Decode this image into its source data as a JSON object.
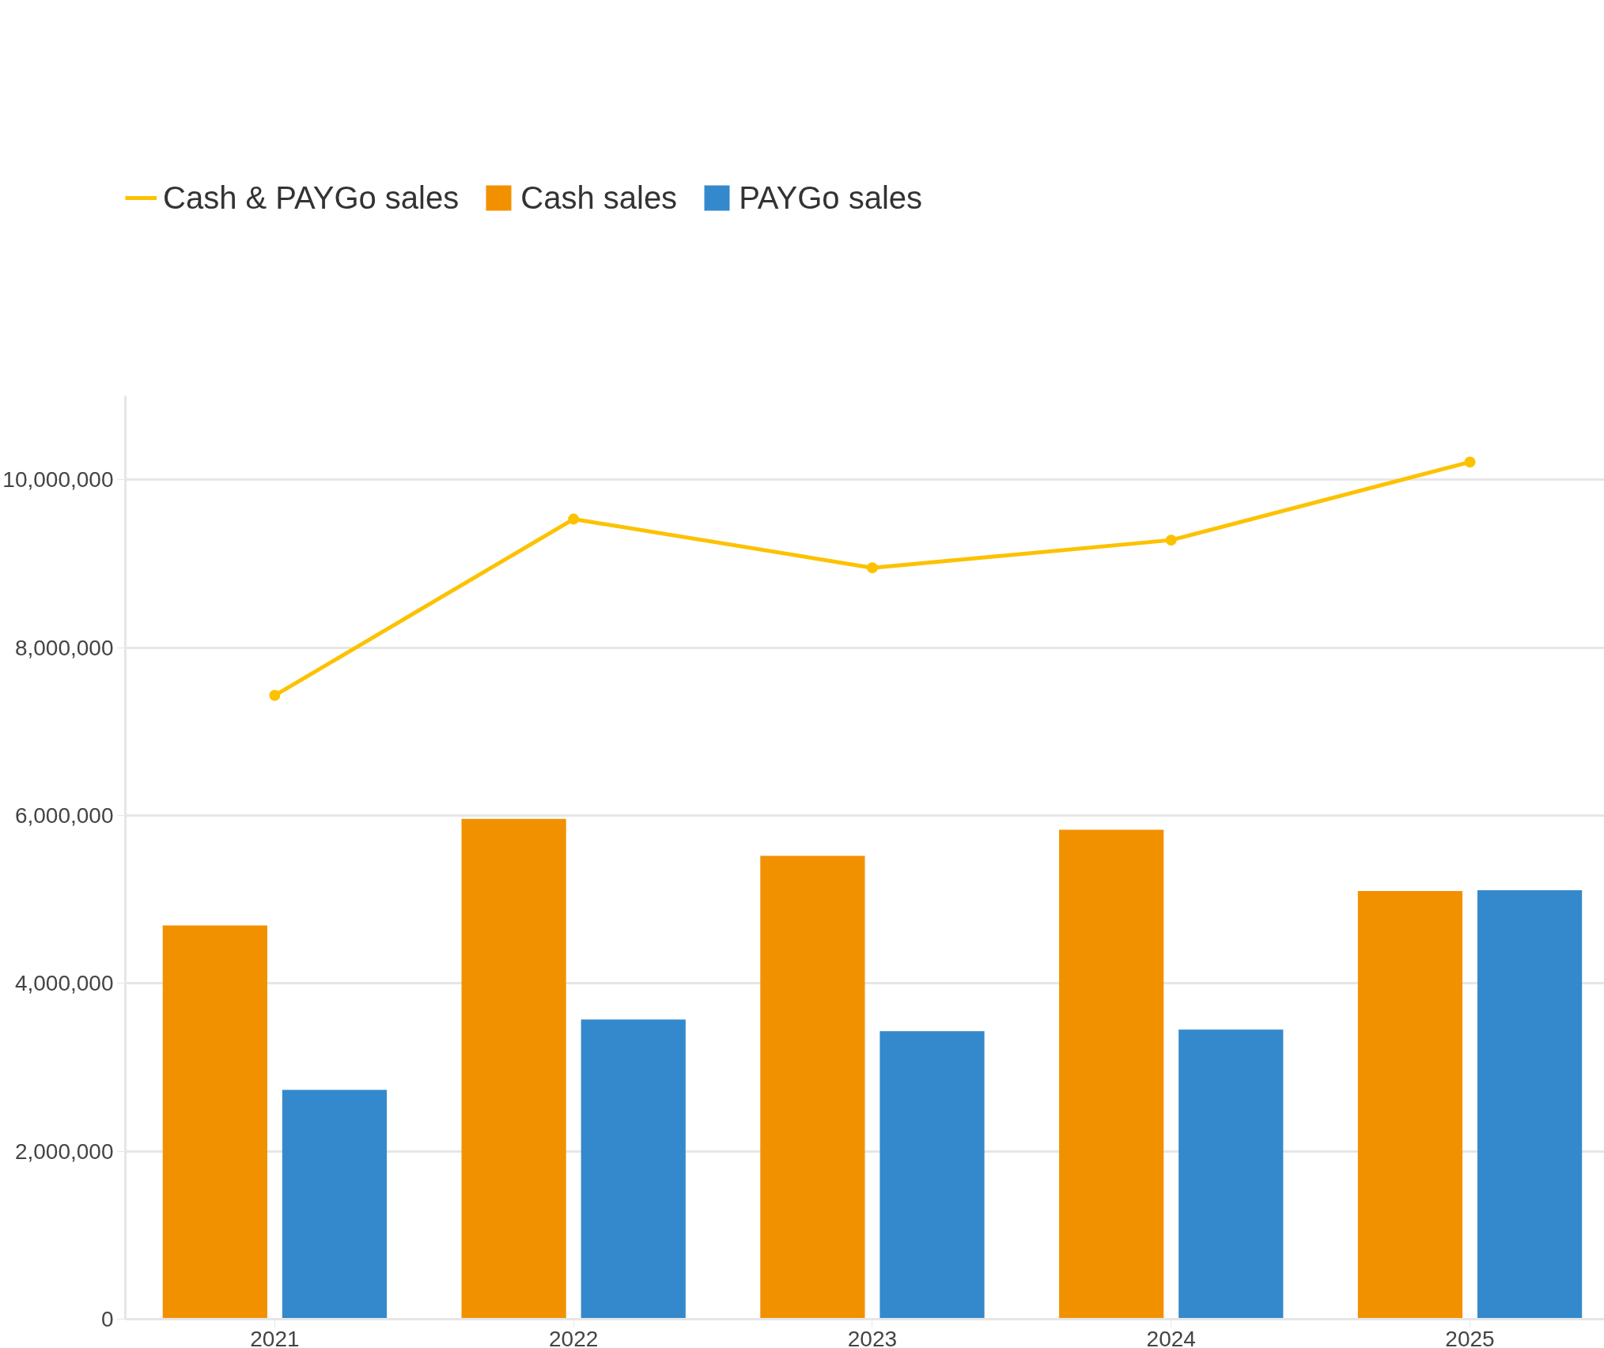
{
  "chart_data": {
    "type": "bar",
    "categories": [
      "2021",
      "2022",
      "2023",
      "2024",
      "2025"
    ],
    "series": [
      {
        "name": "Cash & PAYGo sales",
        "type": "line",
        "color": "#fcc200",
        "marker": "circle",
        "values": [
          7430000,
          9530000,
          8950000,
          9280000,
          10210000
        ]
      },
      {
        "name": "Cash sales",
        "color": "#f29100",
        "values": [
          4690000,
          5960000,
          5520000,
          5830000,
          5100000
        ]
      },
      {
        "name": "PAYGo sales",
        "color": "#3489cc",
        "values": [
          2730000,
          3570000,
          3430000,
          3450000,
          5110000
        ]
      }
    ],
    "ylim": [
      0,
      11000000
    ],
    "yticks": [
      0,
      {
        "value": 2000000,
        "label": "2,000,000"
      },
      {
        "value": 4000000,
        "label": "4,000,000"
      },
      {
        "value": 6000000,
        "label": "6,000,000"
      },
      {
        "value": 8000000,
        "label": "8,000,000"
      },
      {
        "value": 10000000,
        "label": "10,000,000"
      }
    ],
    "grid": "y",
    "legend": "top left"
  }
}
